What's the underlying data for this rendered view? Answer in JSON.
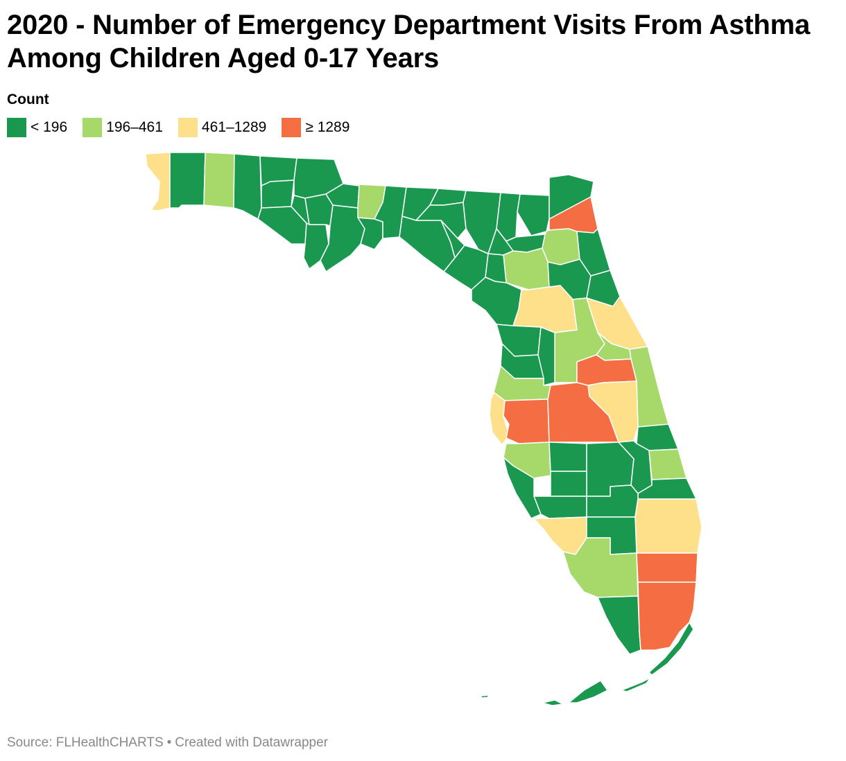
{
  "title": "2020 - Number of Emergency Department Visits From Asthma Among Children Aged 0-17 Years",
  "legend": {
    "title": "Count",
    "items": [
      {
        "label": "< 196",
        "color": "#1a9850"
      },
      {
        "label": "196–461",
        "color": "#a6d96a"
      },
      {
        "label": "461–1289",
        "color": "#fee08b"
      },
      {
        "label": "≥ 1289",
        "color": "#f46d43"
      }
    ]
  },
  "source": {
    "text": "Source: FLHealthCHARTS",
    "separator": "•",
    "credit": "Created with Datawrapper"
  }
}
